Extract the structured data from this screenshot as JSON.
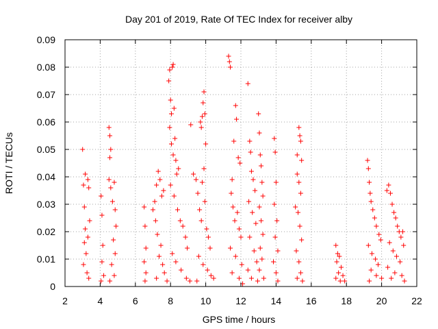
{
  "chart_data": {
    "type": "scatter",
    "title": "Day 201 of 2019, Rate Of TEC Index for receiver alby",
    "xlabel": "GPS time / hours",
    "ylabel": "ROTI / TECUs",
    "xlim": [
      2,
      22
    ],
    "ylim": [
      0,
      0.09
    ],
    "x_ticks": [
      2,
      4,
      6,
      8,
      10,
      12,
      14,
      16,
      18,
      20,
      22
    ],
    "y_ticks": [
      0,
      0.01,
      0.02,
      0.03,
      0.04,
      0.05,
      0.06,
      0.07,
      0.08,
      0.09
    ],
    "x_tick_labels": [
      "2",
      "4",
      "6",
      "8",
      "10",
      "12",
      "14",
      "16",
      "18",
      "20",
      "22"
    ],
    "y_tick_labels": [
      "0",
      "0.01",
      "0.02",
      "0.03",
      "0.04",
      "0.05",
      "0.06",
      "0.07",
      "0.08",
      "0.09"
    ],
    "grid": true,
    "marker": "+",
    "color": "#ff0000",
    "series": [
      {
        "points": [
          [
            3.0,
            0.05
          ],
          [
            3.05,
            0.037
          ],
          [
            3.1,
            0.029
          ],
          [
            3.15,
            0.041
          ],
          [
            3.3,
            0.039
          ],
          [
            3.35,
            0.036
          ],
          [
            3.4,
            0.024
          ],
          [
            3.1,
            0.016
          ],
          [
            3.2,
            0.012
          ],
          [
            3.05,
            0.008
          ],
          [
            3.25,
            0.005
          ],
          [
            3.35,
            0.003
          ],
          [
            3.15,
            0.021
          ],
          [
            3.3,
            0.018
          ],
          [
            4.05,
            0.033
          ],
          [
            4.1,
            0.026
          ],
          [
            4.15,
            0.015
          ],
          [
            4.1,
            0.009
          ],
          [
            4.2,
            0.004
          ],
          [
            4.05,
            0.002
          ],
          [
            4.5,
            0.058
          ],
          [
            4.55,
            0.055
          ],
          [
            4.6,
            0.05
          ],
          [
            4.55,
            0.047
          ],
          [
            4.5,
            0.039
          ],
          [
            4.6,
            0.036
          ],
          [
            4.7,
            0.031
          ],
          [
            4.8,
            0.038
          ],
          [
            4.85,
            0.028
          ],
          [
            4.9,
            0.022
          ],
          [
            4.75,
            0.017
          ],
          [
            4.85,
            0.012
          ],
          [
            4.65,
            0.008
          ],
          [
            4.8,
            0.004
          ],
          [
            4.55,
            0.002
          ],
          [
            6.5,
            0.029
          ],
          [
            6.55,
            0.022
          ],
          [
            6.6,
            0.014
          ],
          [
            6.5,
            0.009
          ],
          [
            6.6,
            0.005
          ],
          [
            6.55,
            0.002
          ],
          [
            7.0,
            0.028
          ],
          [
            7.1,
            0.031
          ],
          [
            7.2,
            0.037
          ],
          [
            7.3,
            0.042
          ],
          [
            7.4,
            0.039
          ],
          [
            7.5,
            0.033
          ],
          [
            7.6,
            0.035
          ],
          [
            7.15,
            0.024
          ],
          [
            7.25,
            0.019
          ],
          [
            7.45,
            0.015
          ],
          [
            7.35,
            0.011
          ],
          [
            7.55,
            0.008
          ],
          [
            7.65,
            0.005
          ],
          [
            7.2,
            0.003
          ],
          [
            7.8,
            0.002
          ],
          [
            7.9,
            0.075
          ],
          [
            7.95,
            0.079
          ],
          [
            8.0,
            0.068
          ],
          [
            8.05,
            0.063
          ],
          [
            8.1,
            0.08
          ],
          [
            8.15,
            0.081
          ],
          [
            8.2,
            0.065
          ],
          [
            7.95,
            0.058
          ],
          [
            8.05,
            0.052
          ],
          [
            8.15,
            0.048
          ],
          [
            8.25,
            0.054
          ],
          [
            8.3,
            0.046
          ],
          [
            8.35,
            0.041
          ],
          [
            8.45,
            0.043
          ],
          [
            8.0,
            0.037
          ],
          [
            8.2,
            0.033
          ],
          [
            8.4,
            0.028
          ],
          [
            8.55,
            0.024
          ],
          [
            8.7,
            0.022
          ],
          [
            8.85,
            0.018
          ],
          [
            8.95,
            0.014
          ],
          [
            8.1,
            0.012
          ],
          [
            8.3,
            0.009
          ],
          [
            8.6,
            0.006
          ],
          [
            8.9,
            0.003
          ],
          [
            9.1,
            0.002
          ],
          [
            9.15,
            0.059
          ],
          [
            9.3,
            0.041
          ],
          [
            9.45,
            0.039
          ],
          [
            9.55,
            0.034
          ],
          [
            9.7,
            0.06
          ],
          [
            9.75,
            0.058
          ],
          [
            9.8,
            0.062
          ],
          [
            9.85,
            0.067
          ],
          [
            9.9,
            0.071
          ],
          [
            9.95,
            0.063
          ],
          [
            10.0,
            0.052
          ],
          [
            9.9,
            0.043
          ],
          [
            9.8,
            0.038
          ],
          [
            9.95,
            0.031
          ],
          [
            9.65,
            0.028
          ],
          [
            9.75,
            0.024
          ],
          [
            10.05,
            0.021
          ],
          [
            10.15,
            0.018
          ],
          [
            10.25,
            0.014
          ],
          [
            9.6,
            0.011
          ],
          [
            9.85,
            0.008
          ],
          [
            10.1,
            0.006
          ],
          [
            10.3,
            0.004
          ],
          [
            9.5,
            0.002
          ],
          [
            10.45,
            0.003
          ],
          [
            11.3,
            0.084
          ],
          [
            11.35,
            0.082
          ],
          [
            11.4,
            0.08
          ],
          [
            11.5,
            0.039
          ],
          [
            11.6,
            0.053
          ],
          [
            11.7,
            0.066
          ],
          [
            11.75,
            0.061
          ],
          [
            11.85,
            0.047
          ],
          [
            11.95,
            0.045
          ],
          [
            11.45,
            0.034
          ],
          [
            11.55,
            0.029
          ],
          [
            11.65,
            0.024
          ],
          [
            11.8,
            0.027
          ],
          [
            11.9,
            0.021
          ],
          [
            12.0,
            0.018
          ],
          [
            11.4,
            0.014
          ],
          [
            11.7,
            0.011
          ],
          [
            12.05,
            0.008
          ],
          [
            11.5,
            0.005
          ],
          [
            11.9,
            0.003
          ],
          [
            12.1,
            0.001
          ],
          [
            12.4,
            0.074
          ],
          [
            12.5,
            0.053
          ],
          [
            12.55,
            0.049
          ],
          [
            12.6,
            0.042
          ],
          [
            12.7,
            0.039
          ],
          [
            12.8,
            0.035
          ],
          [
            12.45,
            0.031
          ],
          [
            12.65,
            0.027
          ],
          [
            12.85,
            0.023
          ],
          [
            12.5,
            0.018
          ],
          [
            12.75,
            0.013
          ],
          [
            12.9,
            0.009
          ],
          [
            12.4,
            0.006
          ],
          [
            12.6,
            0.003
          ],
          [
            12.95,
            0.002
          ],
          [
            13.0,
            0.063
          ],
          [
            13.05,
            0.056
          ],
          [
            13.1,
            0.048
          ],
          [
            13.15,
            0.044
          ],
          [
            13.2,
            0.038
          ],
          [
            13.25,
            0.033
          ],
          [
            13.05,
            0.029
          ],
          [
            13.15,
            0.024
          ],
          [
            13.25,
            0.019
          ],
          [
            13.1,
            0.014
          ],
          [
            13.2,
            0.01
          ],
          [
            13.05,
            0.006
          ],
          [
            13.3,
            0.003
          ],
          [
            13.9,
            0.054
          ],
          [
            13.95,
            0.049
          ],
          [
            14.0,
            0.038
          ],
          [
            13.9,
            0.03
          ],
          [
            14.05,
            0.024
          ],
          [
            13.95,
            0.018
          ],
          [
            14.1,
            0.013
          ],
          [
            13.85,
            0.009
          ],
          [
            14.0,
            0.005
          ],
          [
            14.1,
            0.002
          ],
          [
            15.1,
            0.029
          ],
          [
            15.2,
            0.048
          ],
          [
            15.3,
            0.058
          ],
          [
            15.35,
            0.055
          ],
          [
            15.4,
            0.053
          ],
          [
            15.45,
            0.046
          ],
          [
            15.2,
            0.041
          ],
          [
            15.3,
            0.038
          ],
          [
            15.4,
            0.034
          ],
          [
            15.25,
            0.027
          ],
          [
            15.35,
            0.022
          ],
          [
            15.45,
            0.017
          ],
          [
            15.15,
            0.013
          ],
          [
            15.3,
            0.009
          ],
          [
            15.4,
            0.005
          ],
          [
            15.2,
            0.003
          ],
          [
            15.5,
            0.002
          ],
          [
            17.4,
            0.015
          ],
          [
            17.5,
            0.012
          ],
          [
            17.6,
            0.011
          ],
          [
            17.45,
            0.009
          ],
          [
            17.7,
            0.007
          ],
          [
            17.55,
            0.005
          ],
          [
            17.8,
            0.004
          ],
          [
            17.4,
            0.003
          ],
          [
            17.65,
            0.002
          ],
          [
            17.9,
            0.002
          ],
          [
            19.2,
            0.046
          ],
          [
            19.25,
            0.043
          ],
          [
            19.3,
            0.038
          ],
          [
            19.35,
            0.034
          ],
          [
            19.4,
            0.031
          ],
          [
            19.5,
            0.028
          ],
          [
            19.6,
            0.025
          ],
          [
            19.7,
            0.022
          ],
          [
            19.85,
            0.019
          ],
          [
            19.95,
            0.017
          ],
          [
            19.25,
            0.015
          ],
          [
            19.45,
            0.012
          ],
          [
            19.65,
            0.01
          ],
          [
            19.8,
            0.008
          ],
          [
            19.4,
            0.006
          ],
          [
            19.7,
            0.004
          ],
          [
            19.3,
            0.002
          ],
          [
            20.0,
            0.003
          ],
          [
            20.3,
            0.035
          ],
          [
            20.4,
            0.037
          ],
          [
            20.5,
            0.034
          ],
          [
            20.6,
            0.03
          ],
          [
            20.7,
            0.027
          ],
          [
            20.8,
            0.025
          ],
          [
            20.9,
            0.022
          ],
          [
            21.0,
            0.02
          ],
          [
            21.1,
            0.018
          ],
          [
            21.2,
            0.02
          ],
          [
            21.25,
            0.015
          ],
          [
            20.45,
            0.016
          ],
          [
            20.65,
            0.013
          ],
          [
            20.85,
            0.011
          ],
          [
            21.05,
            0.009
          ],
          [
            20.35,
            0.007
          ],
          [
            20.75,
            0.005
          ],
          [
            21.15,
            0.004
          ],
          [
            20.55,
            0.003
          ],
          [
            21.3,
            0.002
          ]
        ]
      }
    ]
  }
}
